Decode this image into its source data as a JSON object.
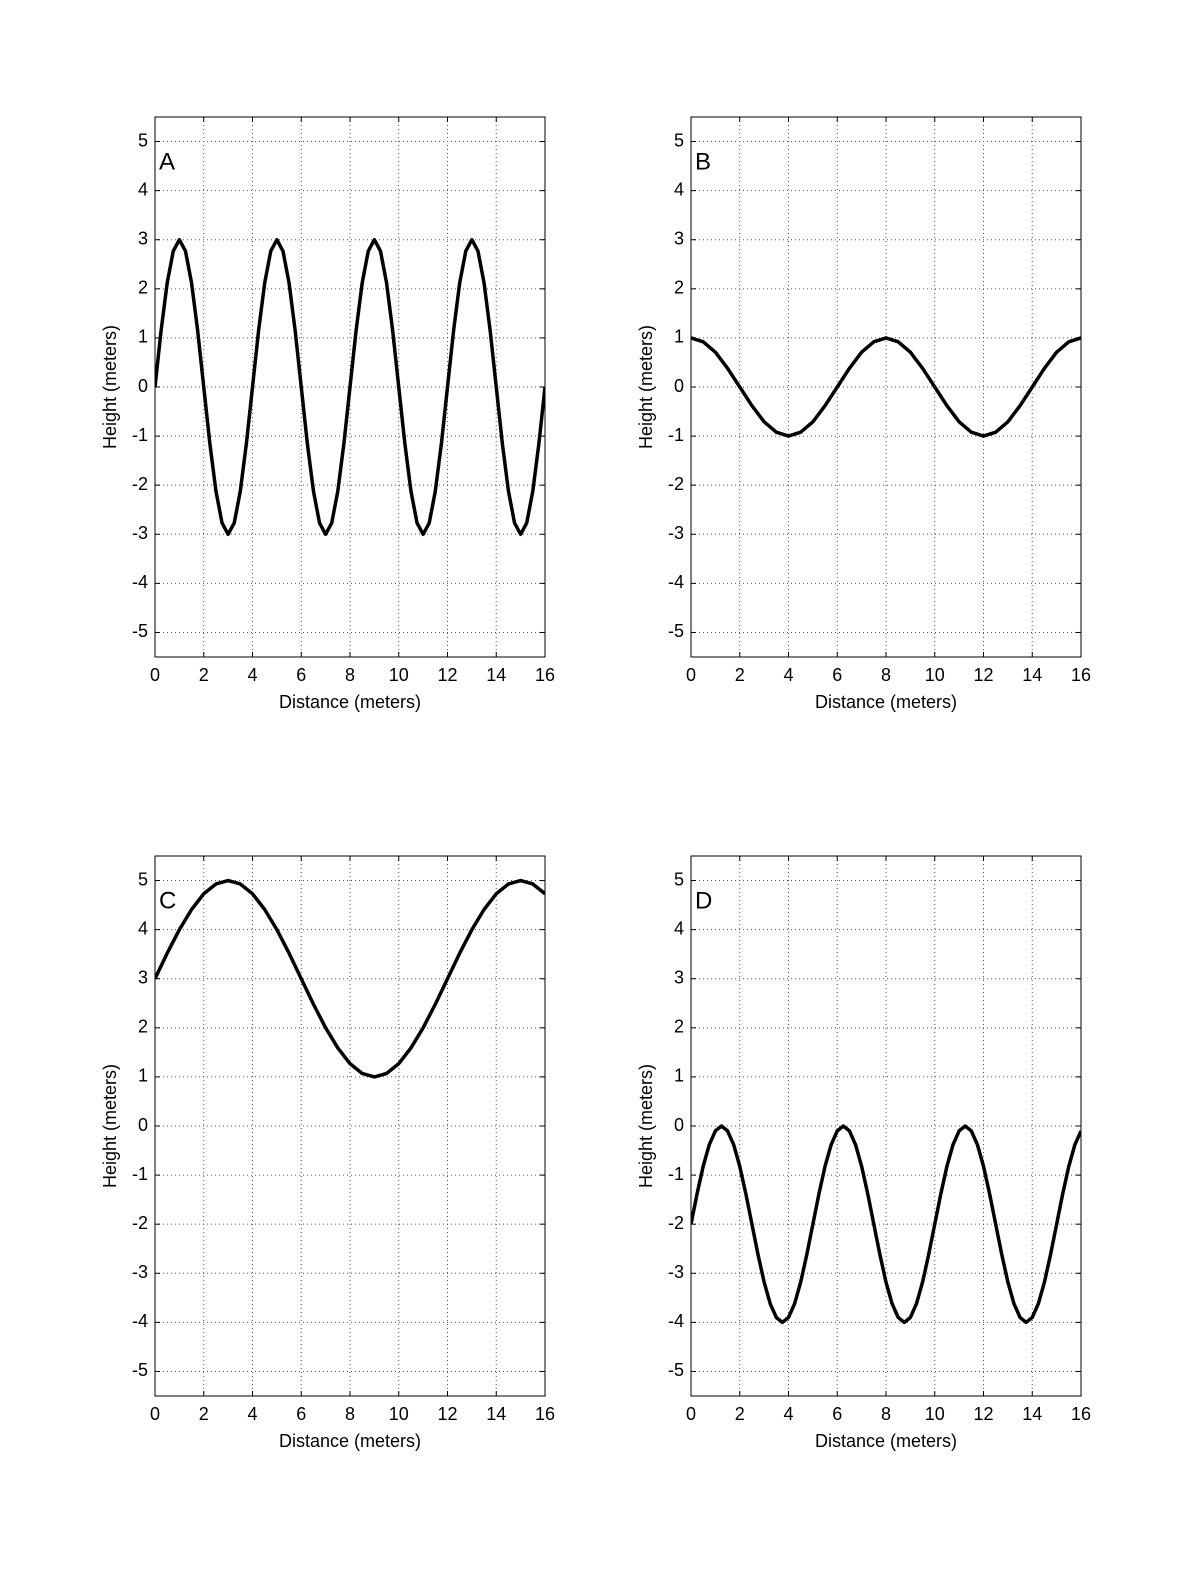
{
  "chart_data": [
    {
      "type": "line",
      "title": "A",
      "xlabel": "Distance (meters)",
      "ylabel": "Height (meters)",
      "xlim": [
        0,
        16
      ],
      "ylim": [
        -5.5,
        5.5
      ],
      "xticks": [
        0,
        2,
        4,
        6,
        8,
        10,
        12,
        14,
        16
      ],
      "yticks": [
        -5,
        -4,
        -3,
        -2,
        -1,
        0,
        1,
        2,
        3,
        4,
        5
      ],
      "grid": true,
      "x": [
        0,
        0.25,
        0.5,
        0.75,
        1,
        1.25,
        1.5,
        1.75,
        2,
        2.25,
        2.5,
        2.75,
        3,
        3.25,
        3.5,
        3.75,
        4,
        4.25,
        4.5,
        4.75,
        5,
        5.25,
        5.5,
        5.75,
        6,
        6.25,
        6.5,
        6.75,
        7,
        7.25,
        7.5,
        7.75,
        8,
        8.25,
        8.5,
        8.75,
        9,
        9.25,
        9.5,
        9.75,
        10,
        10.25,
        10.5,
        10.75,
        11,
        11.25,
        11.5,
        11.75,
        12,
        12.25,
        12.5,
        12.75,
        13,
        13.25,
        13.5,
        13.75,
        14,
        14.25,
        14.5,
        14.75,
        15,
        15.25,
        15.5,
        15.75,
        16
      ],
      "series": [
        {
          "color": "#000000",
          "values": [
            0,
            1.15,
            2.12,
            2.77,
            3,
            2.77,
            2.12,
            1.15,
            0,
            -1.15,
            -2.12,
            -2.77,
            -3,
            -2.77,
            -2.12,
            -1.15,
            0,
            1.15,
            2.12,
            2.77,
            3,
            2.77,
            2.12,
            1.15,
            0,
            -1.15,
            -2.12,
            -2.77,
            -3,
            -2.77,
            -2.12,
            -1.15,
            0,
            1.15,
            2.12,
            2.77,
            3,
            2.77,
            2.12,
            1.15,
            0,
            -1.15,
            -2.12,
            -2.77,
            -3,
            -2.77,
            -2.12,
            -1.15,
            0,
            1.15,
            2.12,
            2.77,
            3,
            2.77,
            2.12,
            1.15,
            0,
            -1.15,
            -2.12,
            -2.77,
            -3,
            -2.77,
            -2.12,
            -1.15,
            0
          ]
        }
      ]
    },
    {
      "type": "line",
      "title": "B",
      "xlabel": "Distance (meters)",
      "ylabel": "Height (meters)",
      "xlim": [
        0,
        16
      ],
      "ylim": [
        -5.5,
        5.5
      ],
      "xticks": [
        0,
        2,
        4,
        6,
        8,
        10,
        12,
        14,
        16
      ],
      "yticks": [
        -5,
        -4,
        -3,
        -2,
        -1,
        0,
        1,
        2,
        3,
        4,
        5
      ],
      "grid": true,
      "x": [
        0,
        0.5,
        1,
        1.5,
        2,
        2.5,
        3,
        3.5,
        4,
        4.5,
        5,
        5.5,
        6,
        6.5,
        7,
        7.5,
        8,
        8.5,
        9,
        9.5,
        10,
        10.5,
        11,
        11.5,
        12,
        12.5,
        13,
        13.5,
        14,
        14.5,
        15,
        15.5,
        16
      ],
      "series": [
        {
          "color": "#000000",
          "values": [
            1,
            0.92,
            0.71,
            0.38,
            0,
            -0.38,
            -0.71,
            -0.92,
            -1,
            -0.92,
            -0.71,
            -0.38,
            0,
            0.38,
            0.71,
            0.92,
            1,
            0.92,
            0.71,
            0.38,
            0,
            -0.38,
            -0.71,
            -0.92,
            -1,
            -0.92,
            -0.71,
            -0.38,
            0,
            0.38,
            0.71,
            0.92,
            1
          ]
        }
      ]
    },
    {
      "type": "line",
      "title": "C",
      "xlabel": "Distance (meters)",
      "ylabel": "Height (meters)",
      "xlim": [
        0,
        16
      ],
      "ylim": [
        -5.5,
        5.5
      ],
      "xticks": [
        0,
        2,
        4,
        6,
        8,
        10,
        12,
        14,
        16
      ],
      "yticks": [
        -5,
        -4,
        -3,
        -2,
        -1,
        0,
        1,
        2,
        3,
        4,
        5
      ],
      "grid": true,
      "x": [
        0,
        0.5,
        1,
        1.5,
        2,
        2.5,
        3,
        3.5,
        4,
        4.5,
        5,
        5.5,
        6,
        6.5,
        7,
        7.5,
        8,
        8.5,
        9,
        9.5,
        10,
        10.5,
        11,
        11.5,
        12,
        12.5,
        13,
        13.5,
        14,
        14.5,
        15,
        15.5,
        16
      ],
      "series": [
        {
          "color": "#000000",
          "values": [
            3,
            3.52,
            4,
            4.41,
            4.73,
            4.93,
            5,
            4.93,
            4.73,
            4.41,
            4,
            3.52,
            3,
            2.48,
            2,
            1.59,
            1.27,
            1.07,
            1,
            1.07,
            1.27,
            1.59,
            2,
            2.48,
            3,
            3.52,
            4,
            4.41,
            4.73,
            4.93,
            5,
            4.93,
            4.73
          ]
        }
      ]
    },
    {
      "type": "line",
      "title": "D",
      "xlabel": "Distance (meters)",
      "ylabel": "Height (meters)",
      "xlim": [
        0,
        16
      ],
      "ylim": [
        -5.5,
        5.5
      ],
      "xticks": [
        0,
        2,
        4,
        6,
        8,
        10,
        12,
        14,
        16
      ],
      "yticks": [
        -5,
        -4,
        -3,
        -2,
        -1,
        0,
        1,
        2,
        3,
        4,
        5
      ],
      "grid": true,
      "x": [
        0,
        0.25,
        0.5,
        0.75,
        1,
        1.25,
        1.5,
        1.75,
        2,
        2.25,
        2.5,
        2.75,
        3,
        3.25,
        3.5,
        3.75,
        4,
        4.25,
        4.5,
        4.75,
        5,
        5.25,
        5.5,
        5.75,
        6,
        6.25,
        6.5,
        6.75,
        7,
        7.25,
        7.5,
        7.75,
        8,
        8.25,
        8.5,
        8.75,
        9,
        9.25,
        9.5,
        9.75,
        10,
        10.25,
        10.5,
        10.75,
        11,
        11.25,
        11.5,
        11.75,
        12,
        12.25,
        12.5,
        12.75,
        13,
        13.25,
        13.5,
        13.75,
        14,
        14.25,
        14.5,
        14.75,
        15,
        15.25,
        15.5,
        15.75,
        16
      ],
      "series": [
        {
          "color": "#000000",
          "values": [
            -2,
            -1.38,
            -0.82,
            -0.38,
            -0.1,
            0,
            -0.1,
            -0.38,
            -0.82,
            -1.38,
            -2,
            -2.62,
            -3.18,
            -3.62,
            -3.9,
            -4,
            -3.9,
            -3.62,
            -3.18,
            -2.62,
            -2,
            -1.38,
            -0.82,
            -0.38,
            -0.1,
            0,
            -0.1,
            -0.38,
            -0.82,
            -1.38,
            -2,
            -2.62,
            -3.18,
            -3.62,
            -3.9,
            -4,
            -3.9,
            -3.62,
            -3.18,
            -2.62,
            -2,
            -1.38,
            -0.82,
            -0.38,
            -0.1,
            0,
            -0.1,
            -0.38,
            -0.82,
            -1.38,
            -2,
            -2.62,
            -3.18,
            -3.62,
            -3.9,
            -4,
            -3.9,
            -3.62,
            -3.18,
            -2.62,
            -2,
            -1.38,
            -0.82,
            -0.38,
            -0.1
          ]
        }
      ]
    }
  ]
}
